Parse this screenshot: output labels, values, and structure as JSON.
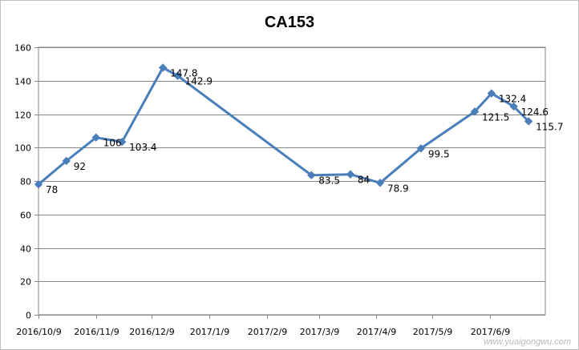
{
  "chart_data": {
    "type": "line",
    "title": "CA153",
    "xlabel": "",
    "ylabel": "",
    "ylim": [
      0,
      160
    ],
    "yticks": [
      0,
      20,
      40,
      60,
      80,
      100,
      120,
      140,
      160
    ],
    "xlim": [
      "2016-10-09",
      "2017-07-09"
    ],
    "xticks": [
      {
        "date": "2016-10-09",
        "label": "2016/10/9"
      },
      {
        "date": "2016-11-09",
        "label": "2016/11/9"
      },
      {
        "date": "2016-12-09",
        "label": "2016/12/9"
      },
      {
        "date": "2017-01-09",
        "label": "2017/1/9"
      },
      {
        "date": "2017-02-09",
        "label": "2017/2/9"
      },
      {
        "date": "2017-03-09",
        "label": "2017/3/9"
      },
      {
        "date": "2017-04-09",
        "label": "2017/4/9"
      },
      {
        "date": "2017-05-09",
        "label": "2017/5/9"
      },
      {
        "date": "2017-06-09",
        "label": "2017/6/9"
      }
    ],
    "grid": true,
    "legend": "none",
    "series": [
      {
        "color": "#4a7ebb",
        "points": [
          {
            "x": "2016-10-09",
            "y": 78,
            "label": "78"
          },
          {
            "x": "2016-10-24",
            "y": 92,
            "label": "92"
          },
          {
            "x": "2016-11-09",
            "y": 106,
            "label": "106"
          },
          {
            "x": "2016-11-23",
            "y": 103.4,
            "label": "103.4"
          },
          {
            "x": "2016-12-15",
            "y": 147.8,
            "label": "147.8"
          },
          {
            "x": "2016-12-23",
            "y": 142.9,
            "label": "142.9"
          },
          {
            "x": "2017-03-05",
            "y": 83.5,
            "label": "83.5"
          },
          {
            "x": "2017-03-26",
            "y": 84,
            "label": "84"
          },
          {
            "x": "2017-04-11",
            "y": 78.9,
            "label": "78.9"
          },
          {
            "x": "2017-05-03",
            "y": 99.5,
            "label": "99.5"
          },
          {
            "x": "2017-06-01",
            "y": 121.5,
            "label": "121.5"
          },
          {
            "x": "2017-06-10",
            "y": 132.4,
            "label": "132.4"
          },
          {
            "x": "2017-06-22",
            "y": 124.6,
            "label": "124.6"
          },
          {
            "x": "2017-06-30",
            "y": 115.7,
            "label": "115.7"
          }
        ]
      }
    ]
  },
  "watermark": "www.yuaigongwu.com"
}
